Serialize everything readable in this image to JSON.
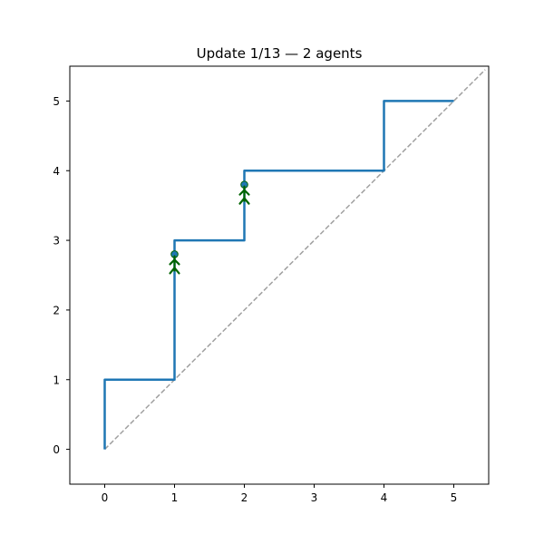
{
  "chart_data": {
    "type": "line",
    "title": "Update 1/13 — 2 agents",
    "xlabel": "",
    "ylabel": "",
    "xlim": [
      -0.5,
      5.5
    ],
    "ylim": [
      -0.5,
      5.5
    ],
    "x_ticks": [
      0,
      1,
      2,
      3,
      4,
      5
    ],
    "y_ticks": [
      0,
      1,
      2,
      3,
      4,
      5
    ],
    "grid": false,
    "series": [
      {
        "kind": "step-path",
        "color": "#1f77b4",
        "points": [
          [
            0,
            0
          ],
          [
            0,
            1
          ],
          [
            1,
            1
          ],
          [
            1,
            3
          ],
          [
            2,
            3
          ],
          [
            2,
            4
          ],
          [
            4,
            4
          ],
          [
            4,
            5
          ],
          [
            5,
            5
          ]
        ]
      },
      {
        "kind": "diagonal-reference",
        "style": "dashed",
        "color": "#a0a0a0",
        "points": [
          [
            0,
            0
          ],
          [
            5.45,
            5.45
          ]
        ]
      }
    ],
    "agents": [
      {
        "x": 1,
        "y": 2.8,
        "color": "#006400",
        "icon": "agent-stick-figure-icon"
      },
      {
        "x": 2,
        "y": 3.8,
        "color": "#006400",
        "icon": "agent-stick-figure-icon"
      }
    ]
  }
}
